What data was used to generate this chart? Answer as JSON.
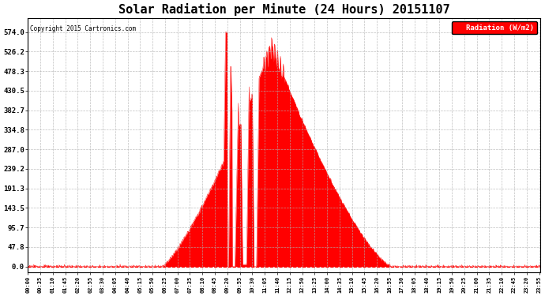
{
  "title": "Solar Radiation per Minute (24 Hours) 20151107",
  "copyright_text": "Copyright 2015 Cartronics.com",
  "ylabel": "Radiation (W/m2)",
  "background_color": "#ffffff",
  "plot_bg_color": "#ffffff",
  "fill_color": "#ff0000",
  "line_color": "#ff0000",
  "grid_color": "#b0b0b0",
  "zero_line_color": "#ff0000",
  "ytick_labels": [
    "0.0",
    "47.8",
    "95.7",
    "143.5",
    "191.3",
    "239.2",
    "287.0",
    "334.8",
    "382.7",
    "430.5",
    "478.3",
    "526.2",
    "574.0"
  ],
  "ytick_values": [
    0.0,
    47.8,
    95.7,
    143.5,
    191.3,
    239.2,
    287.0,
    334.8,
    382.7,
    430.5,
    478.3,
    526.2,
    574.0
  ],
  "ymax": 574.0,
  "legend_label": "Radiation (W/m2)",
  "legend_bg": "#ff0000",
  "legend_text_color": "#ffffff",
  "tick_interval_minutes": 35,
  "total_minutes": 1440
}
